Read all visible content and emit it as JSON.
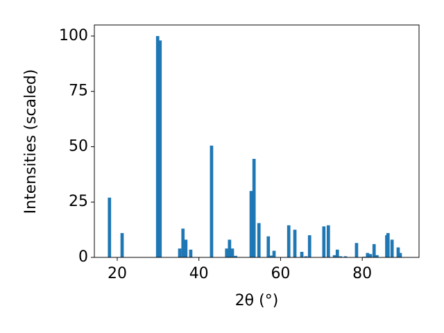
{
  "chart_data": {
    "type": "bar",
    "xlabel": "2θ (°)",
    "ylabel": "Intensities (scaled)",
    "x": [
      18.1,
      21.2,
      29.9,
      30.5,
      35.3,
      36.1,
      36.8,
      38.0,
      43.1,
      46.8,
      47.5,
      48.2,
      49.0,
      52.8,
      53.5,
      54.7,
      57.0,
      57.7,
      58.4,
      62.0,
      63.5,
      65.2,
      66.2,
      67.1,
      70.6,
      71.7,
      73.2,
      73.9,
      74.7,
      75.9,
      78.6,
      80.5,
      81.3,
      82.0,
      82.9,
      83.6,
      86.0,
      86.3,
      87.3,
      88.8,
      89.3
    ],
    "values": [
      27,
      11,
      100,
      98,
      4,
      13,
      8,
      3.5,
      50.5,
      4,
      8,
      4,
      0.7,
      30,
      44.5,
      15.5,
      9.5,
      0.8,
      3,
      14.5,
      12.5,
      2.5,
      0.5,
      10,
      14,
      14.5,
      1,
      3.5,
      0.5,
      0.5,
      6.5,
      0.3,
      2,
      1.5,
      6,
      1,
      10,
      11,
      8,
      4.5,
      2
    ],
    "color": "#1f77b4",
    "bar_width": 0.8,
    "xlim": [
      14.4,
      93.9
    ],
    "xticks": [
      20,
      40,
      60,
      80
    ],
    "ylim": [
      0,
      105
    ],
    "yticks": [
      0,
      25,
      50,
      75,
      100
    ],
    "grid": false
  }
}
